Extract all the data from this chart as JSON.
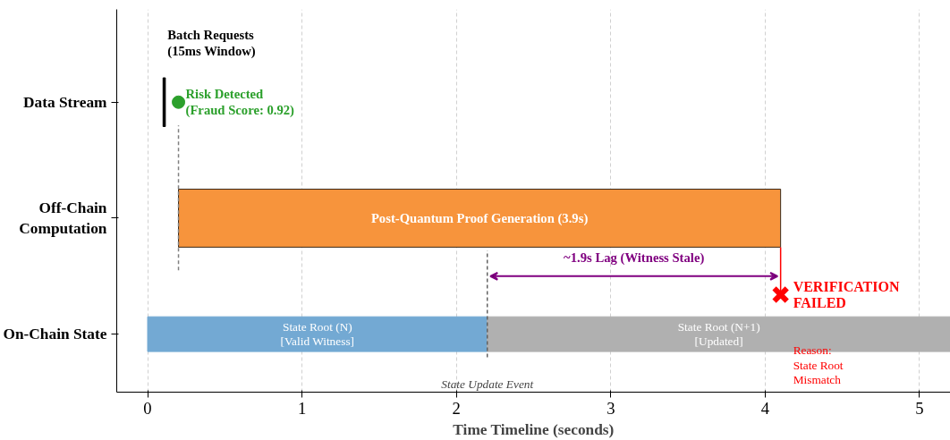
{
  "chart_data": {
    "type": "bar",
    "orientation": "horizontal",
    "categories": [
      "Data Stream",
      "Off-Chain Computation",
      "On-Chain State"
    ],
    "xlabel": "Time Timeline (seconds)",
    "xlim": [
      -0.2,
      5.2
    ],
    "xticks": [
      0,
      1,
      2,
      3,
      4,
      5
    ],
    "grid": "x",
    "series": [
      {
        "color": "#000000",
        "values": [
          0.015,
          null,
          null
        ],
        "base": [
          0.1,
          null,
          null
        ]
      },
      {
        "color": "#f7943c",
        "values": [
          null,
          3.9,
          null
        ],
        "base": [
          null,
          0.2,
          null
        ]
      },
      {
        "color": "#73a9d3",
        "values": [
          null,
          null,
          2.2
        ],
        "base": [
          null,
          null,
          0
        ]
      },
      {
        "color": "#b0b0b0",
        "values": [
          null,
          null,
          3.0
        ],
        "base": [
          null,
          null,
          2.2
        ]
      },
      {
        "type": "scatter",
        "marker": "circle",
        "color": "#2ca02c",
        "values": [
          0.2,
          null,
          null
        ]
      },
      {
        "type": "scatter",
        "marker": "cross",
        "color": "#ff0000",
        "values": [
          null,
          null,
          4.1
        ]
      }
    ],
    "ref_lines": [
      {
        "axis": "x",
        "value": 0.2,
        "color": "#808080",
        "line_style": "dashed"
      },
      {
        "axis": "x",
        "value": 2.2,
        "label": "State Update Event",
        "color": "#606060",
        "line_style": "dashed"
      }
    ],
    "annotations": [
      "Batch Requests\n(15ms Window)",
      "Risk Detected\n(Fraud Score: 0.92)",
      "Post-Quantum Proof Generation (3.9s)",
      "State Root (N)\n[Valid Witness]",
      "State Root (N+1)\n[Updated]",
      "~1.9s Lag (Witness Stale)",
      {
        "text": "VERIFICATION\nFAILED",
        "x": 4.1
      },
      "Reason:\nState Root\nMismatch"
    ]
  }
}
